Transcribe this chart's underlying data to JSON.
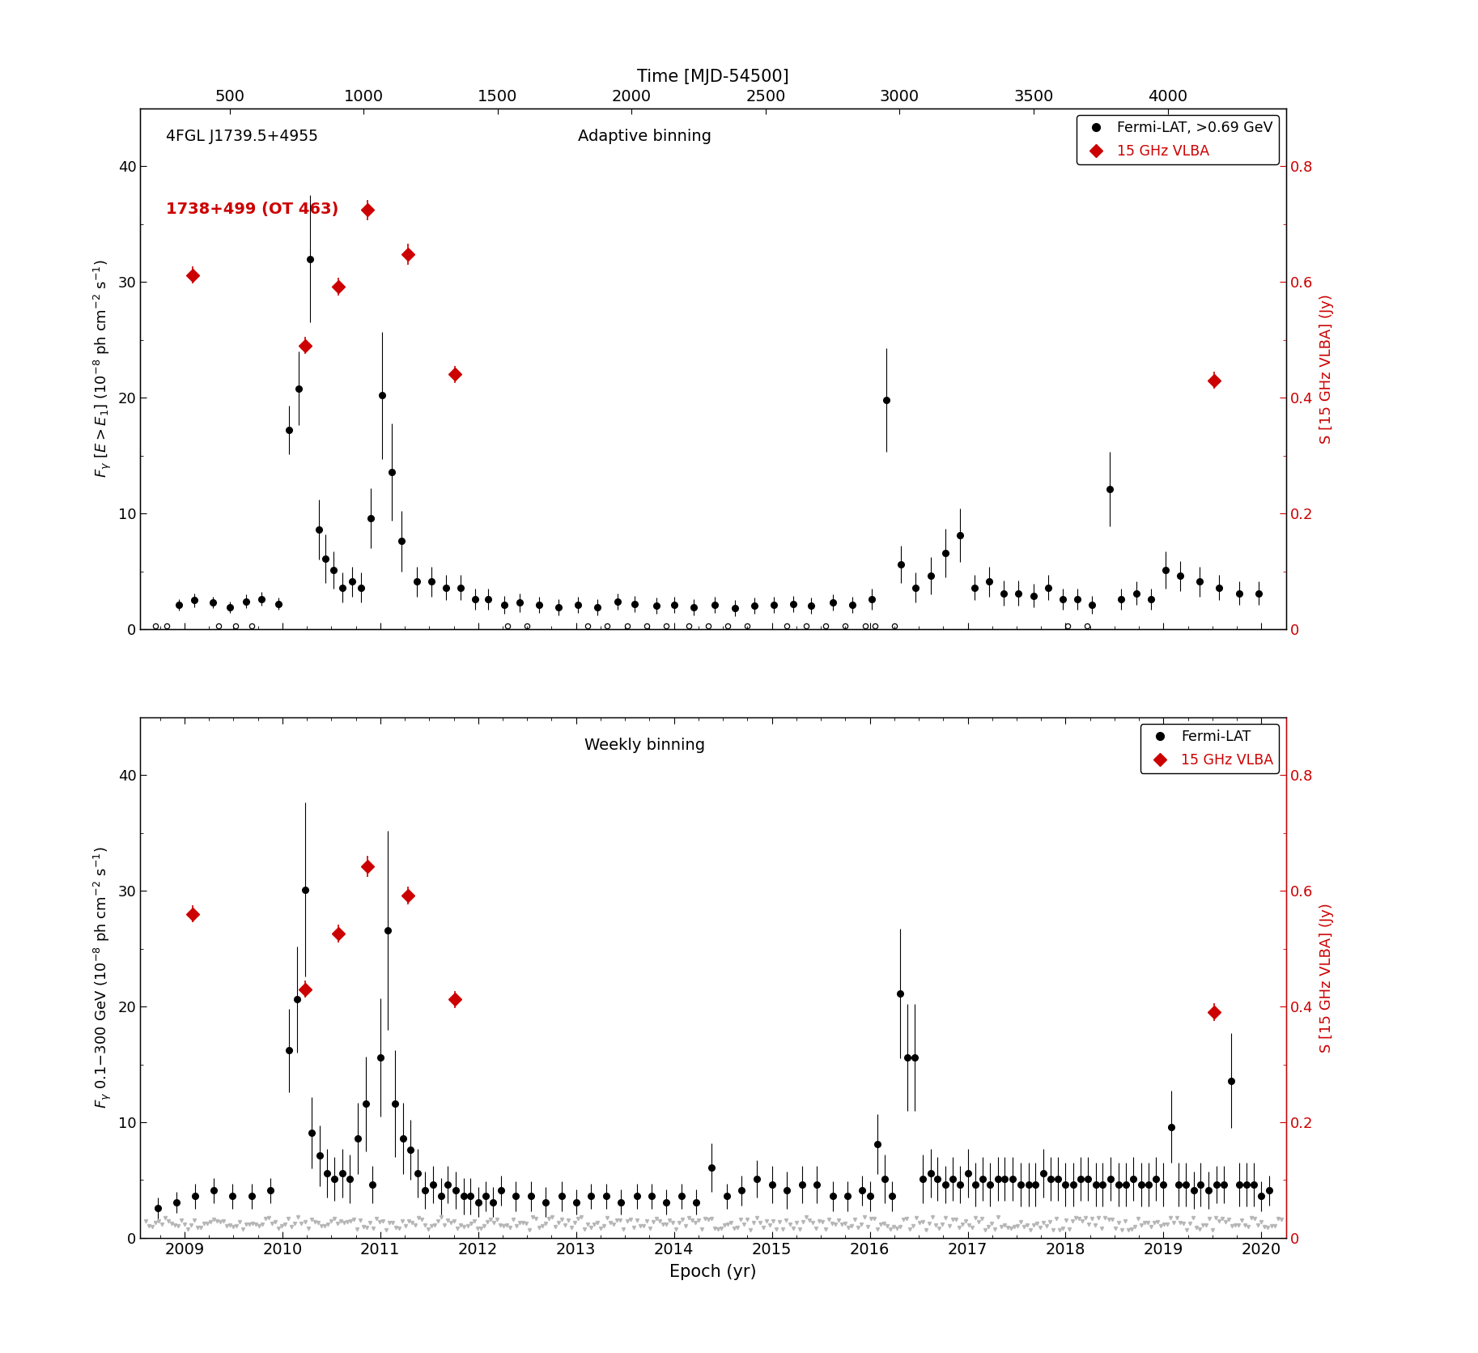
{
  "title_top": "Time [MJD-54500]",
  "xlabel": "Epoch (yr)",
  "ylabel_left_top": "$F_{\\gamma}$ $[E{>}E_1]$ $(10^{-8}$ ph cm$^{-2}$ s$^{-1})$",
  "ylabel_right": "S [15 GHz VLBA] (Jy)",
  "ylabel_left_bottom": "$F_{\\gamma}$ 0.1-300 GeV $(10^{-8}$ ph cm$^{-2}$ s$^{-1})$",
  "annotation_top1": "4FGL J1739.5+4955",
  "annotation_top2": "1738+499 (OT 463)",
  "label_adaptive": "Adaptive binning",
  "label_weekly": "Weekly binning",
  "legend_fermi_top": "Fermi-LAT, >0.69 GeV",
  "legend_vlba": "15 GHz VLBA",
  "legend_fermi_bottom": "Fermi-LAT",
  "year_start": 2008.55,
  "year_end": 2020.25,
  "mjd_ticks": [
    500,
    1000,
    1500,
    2000,
    2500,
    3000,
    3500,
    4000
  ],
  "year_ticks": [
    2009,
    2010,
    2011,
    2012,
    2013,
    2014,
    2015,
    2016,
    2017,
    2018,
    2019,
    2020
  ],
  "ylim_left": [
    0,
    45
  ],
  "ylim_right": [
    0,
    0.9
  ],
  "vlba_x": [
    2009.08,
    2010.23,
    2010.57,
    2010.87,
    2011.28,
    2011.76,
    2019.52
  ],
  "vlba_jy_top": [
    0.612,
    0.49,
    0.592,
    0.724,
    0.648,
    0.44,
    0.43
  ],
  "vlba_jy_err_top": [
    0.015,
    0.015,
    0.015,
    0.018,
    0.018,
    0.015,
    0.015
  ],
  "vlba_jy_bot": [
    0.56,
    0.43,
    0.526,
    0.642,
    0.592,
    0.412,
    0.39
  ],
  "vlba_jy_err_bot": [
    0.015,
    0.015,
    0.015,
    0.018,
    0.015,
    0.015,
    0.015
  ],
  "lat_adaptive_x": [
    2008.94,
    2009.1,
    2009.29,
    2009.46,
    2009.63,
    2009.79,
    2009.96,
    2010.07,
    2010.17,
    2010.28,
    2010.37,
    2010.44,
    2010.52,
    2010.61,
    2010.71,
    2010.8,
    2010.9,
    2011.02,
    2011.12,
    2011.22,
    2011.37,
    2011.52,
    2011.67,
    2011.82,
    2011.97,
    2012.1,
    2012.27,
    2012.42,
    2012.62,
    2012.82,
    2013.02,
    2013.22,
    2013.42,
    2013.6,
    2013.82,
    2014.0,
    2014.2,
    2014.42,
    2014.62,
    2014.82,
    2015.02,
    2015.22,
    2015.4,
    2015.62,
    2015.82,
    2016.02,
    2016.17,
    2016.32,
    2016.47,
    2016.62,
    2016.77,
    2016.92,
    2017.07,
    2017.22,
    2017.37,
    2017.52,
    2017.67,
    2017.82,
    2017.97,
    2018.12,
    2018.27,
    2018.45,
    2018.57,
    2018.72,
    2018.87,
    2019.02,
    2019.17,
    2019.37,
    2019.57,
    2019.77,
    2019.97
  ],
  "lat_adaptive_y": [
    2.1,
    2.5,
    2.3,
    1.9,
    2.4,
    2.6,
    2.2,
    17.2,
    20.8,
    32.0,
    8.6,
    6.1,
    5.1,
    3.6,
    4.1,
    3.6,
    9.6,
    20.2,
    13.6,
    7.6,
    4.1,
    4.1,
    3.6,
    3.6,
    2.6,
    2.6,
    2.1,
    2.3,
    2.1,
    1.9,
    2.1,
    1.9,
    2.4,
    2.2,
    2.0,
    2.1,
    1.9,
    2.1,
    1.8,
    2.0,
    2.1,
    2.2,
    2.0,
    2.3,
    2.1,
    2.6,
    19.8,
    5.6,
    3.6,
    4.6,
    6.6,
    8.1,
    3.6,
    4.1,
    3.1,
    3.1,
    2.9,
    3.6,
    2.6,
    2.6,
    2.1,
    12.1,
    2.6,
    3.1,
    2.6,
    5.1,
    4.6,
    4.1,
    3.6,
    3.1,
    3.1
  ],
  "lat_adaptive_yerr": [
    0.5,
    0.6,
    0.5,
    0.5,
    0.6,
    0.6,
    0.5,
    2.1,
    3.2,
    5.5,
    2.6,
    2.1,
    1.6,
    1.3,
    1.3,
    1.3,
    2.6,
    5.5,
    4.2,
    2.6,
    1.3,
    1.3,
    1.1,
    1.1,
    0.9,
    0.9,
    0.8,
    0.8,
    0.7,
    0.7,
    0.7,
    0.7,
    0.7,
    0.7,
    0.7,
    0.7,
    0.7,
    0.7,
    0.7,
    0.7,
    0.7,
    0.7,
    0.7,
    0.7,
    0.7,
    0.9,
    4.5,
    1.6,
    1.3,
    1.6,
    2.1,
    2.3,
    1.1,
    1.3,
    1.1,
    1.1,
    1.0,
    1.1,
    0.9,
    0.9,
    0.8,
    3.2,
    0.9,
    1.0,
    0.9,
    1.6,
    1.3,
    1.3,
    1.1,
    1.0,
    1.0
  ],
  "lat_adaptive_uplim_x": [
    2008.7,
    2008.82,
    2009.35,
    2009.52,
    2009.69,
    2012.3,
    2012.5,
    2013.12,
    2013.32,
    2013.52,
    2013.72,
    2013.92,
    2014.15,
    2014.35,
    2014.55,
    2014.75,
    2015.15,
    2015.35,
    2015.55,
    2015.75,
    2015.95,
    2016.05,
    2016.25,
    2018.02,
    2018.22
  ],
  "lat_weekly_x": [
    2008.73,
    2008.92,
    2009.11,
    2009.3,
    2009.49,
    2009.69,
    2009.88,
    2010.07,
    2010.15,
    2010.23,
    2010.3,
    2010.38,
    2010.46,
    2010.53,
    2010.61,
    2010.69,
    2010.77,
    2010.85,
    2010.92,
    2011.0,
    2011.08,
    2011.15,
    2011.23,
    2011.31,
    2011.38,
    2011.46,
    2011.54,
    2011.62,
    2011.69,
    2011.77,
    2011.85,
    2011.92,
    2012.0,
    2012.08,
    2012.15,
    2012.23,
    2012.38,
    2012.54,
    2012.69,
    2012.85,
    2013.0,
    2013.15,
    2013.31,
    2013.46,
    2013.62,
    2013.77,
    2013.92,
    2014.08,
    2014.23,
    2014.38,
    2014.54,
    2014.69,
    2014.85,
    2015.0,
    2015.15,
    2015.31,
    2015.46,
    2015.62,
    2015.77,
    2015.92,
    2016.0,
    2016.08,
    2016.15,
    2016.23,
    2016.31,
    2016.38,
    2016.46,
    2016.54,
    2016.62,
    2016.69,
    2016.77,
    2016.85,
    2016.92,
    2017.0,
    2017.08,
    2017.15,
    2017.23,
    2017.31,
    2017.38,
    2017.46,
    2017.54,
    2017.62,
    2017.69,
    2017.77,
    2017.85,
    2017.92,
    2018.0,
    2018.08,
    2018.15,
    2018.23,
    2018.31,
    2018.38,
    2018.46,
    2018.54,
    2018.62,
    2018.69,
    2018.77,
    2018.85,
    2018.92,
    2019.0,
    2019.08,
    2019.15,
    2019.23,
    2019.31,
    2019.38,
    2019.46,
    2019.54,
    2019.62,
    2019.69,
    2019.77,
    2019.85,
    2019.92,
    2020.0,
    2020.08
  ],
  "lat_weekly_y": [
    2.6,
    3.1,
    3.6,
    4.1,
    3.6,
    3.6,
    4.1,
    16.2,
    20.6,
    30.1,
    9.1,
    7.1,
    5.6,
    5.1,
    5.6,
    5.1,
    8.6,
    11.6,
    4.6,
    15.6,
    26.6,
    11.6,
    8.6,
    7.6,
    5.6,
    4.1,
    4.6,
    3.6,
    4.6,
    4.1,
    3.6,
    3.6,
    3.1,
    3.6,
    3.1,
    4.1,
    3.6,
    3.6,
    3.1,
    3.6,
    3.1,
    3.6,
    3.6,
    3.1,
    3.6,
    3.6,
    3.1,
    3.6,
    3.1,
    6.1,
    3.6,
    4.1,
    5.1,
    4.6,
    4.1,
    4.6,
    4.6,
    3.6,
    3.6,
    4.1,
    3.6,
    8.1,
    5.1,
    3.6,
    21.1,
    15.6,
    15.6,
    5.1,
    5.6,
    5.1,
    4.6,
    5.1,
    4.6,
    5.6,
    4.6,
    5.1,
    4.6,
    5.1,
    5.1,
    5.1,
    4.6,
    4.6,
    4.6,
    5.6,
    5.1,
    5.1,
    4.6,
    4.6,
    5.1,
    5.1,
    4.6,
    4.6,
    5.1,
    4.6,
    4.6,
    5.1,
    4.6,
    4.6,
    5.1,
    4.6,
    9.6,
    4.6,
    4.6,
    4.1,
    4.6,
    4.1,
    4.6,
    4.6,
    13.6,
    4.6,
    4.6,
    4.6,
    3.6,
    4.1
  ],
  "lat_weekly_yerr": [
    0.9,
    0.9,
    1.1,
    1.1,
    1.1,
    1.1,
    1.1,
    3.6,
    4.6,
    7.5,
    3.1,
    2.6,
    2.1,
    1.9,
    2.1,
    2.1,
    3.1,
    4.1,
    1.6,
    5.1,
    8.6,
    4.6,
    3.1,
    2.6,
    2.1,
    1.6,
    1.6,
    1.6,
    1.6,
    1.6,
    1.6,
    1.6,
    1.3,
    1.3,
    1.3,
    1.3,
    1.3,
    1.3,
    1.3,
    1.3,
    1.1,
    1.1,
    1.1,
    1.1,
    1.1,
    1.1,
    1.1,
    1.1,
    1.1,
    2.1,
    1.1,
    1.3,
    1.6,
    1.6,
    1.6,
    1.6,
    1.6,
    1.3,
    1.3,
    1.3,
    1.3,
    2.6,
    2.1,
    1.3,
    5.6,
    4.6,
    4.6,
    2.1,
    2.1,
    1.9,
    1.6,
    1.9,
    1.6,
    2.1,
    1.9,
    1.9,
    1.9,
    1.9,
    1.9,
    1.9,
    1.9,
    1.9,
    1.9,
    2.1,
    1.9,
    1.9,
    1.9,
    1.9,
    1.9,
    1.9,
    1.9,
    1.9,
    1.9,
    1.9,
    1.9,
    1.9,
    1.9,
    1.9,
    1.9,
    1.9,
    3.1,
    1.9,
    1.9,
    1.6,
    1.9,
    1.6,
    1.6,
    1.6,
    4.1,
    1.9,
    1.9,
    1.9,
    1.3,
    1.3
  ],
  "background_color": "#ffffff",
  "dot_color": "black",
  "vlba_color": "#cc0000",
  "grey_color": "#b0b0b0"
}
